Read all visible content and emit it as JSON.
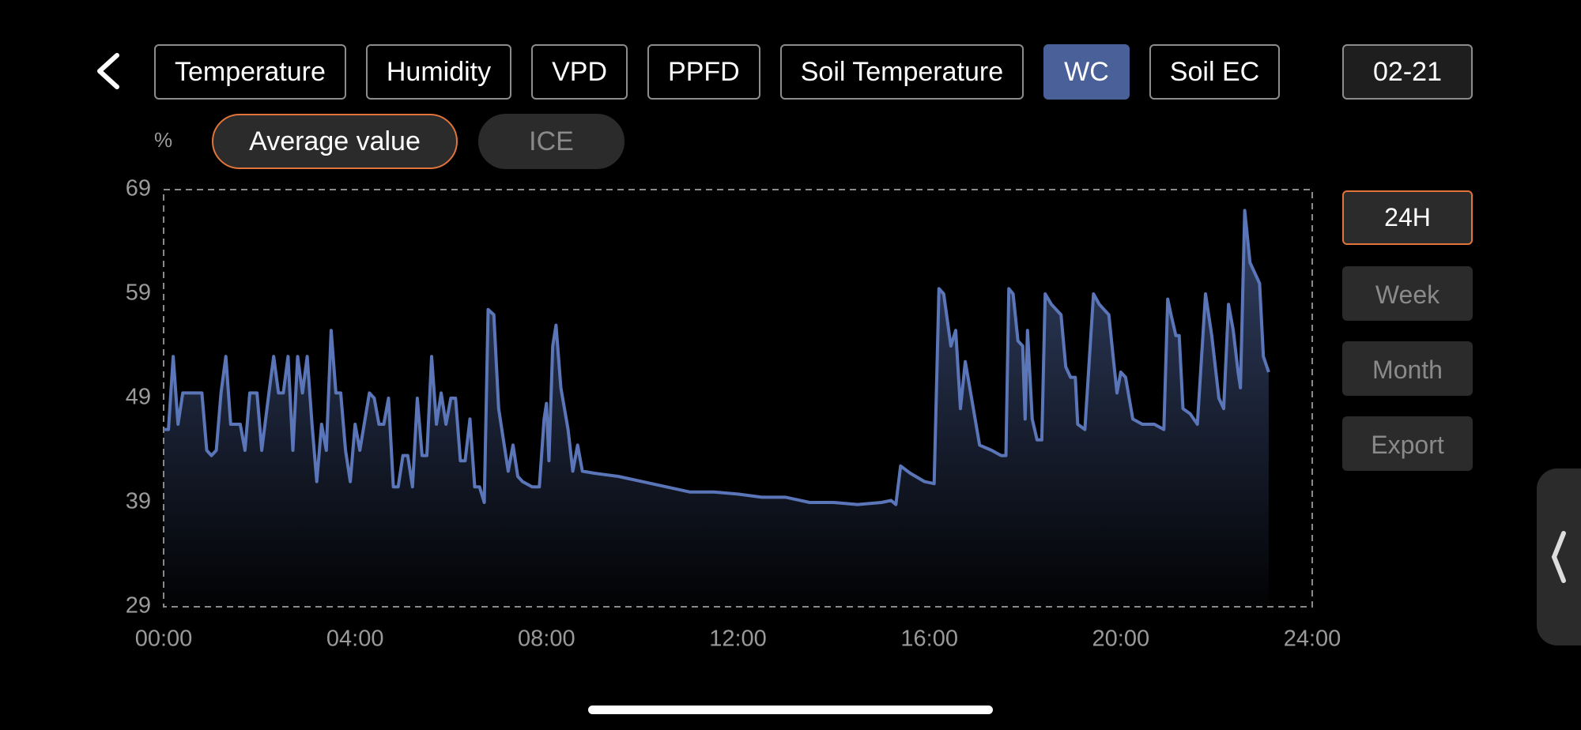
{
  "tabs": [
    "Temperature",
    "Humidity",
    "VPD",
    "PPFD",
    "Soil Temperature",
    "WC",
    "Soil EC"
  ],
  "selected_tab": 5,
  "date": "02-21",
  "filters": [
    "Average value",
    "ICE"
  ],
  "selected_filter": 0,
  "ranges": [
    "24H",
    "Week",
    "Month"
  ],
  "selected_range": 0,
  "export": "Export",
  "chart_data": {
    "type": "area",
    "y_label": "%",
    "xlim": [
      0,
      24
    ],
    "xticks": [
      {
        "value": 0,
        "label": "00:00"
      },
      {
        "value": 4,
        "label": "04:00"
      },
      {
        "value": 8,
        "label": "08:00"
      },
      {
        "value": 12,
        "label": "12:00"
      },
      {
        "value": 16,
        "label": "16:00"
      },
      {
        "value": 20,
        "label": "20:00"
      },
      {
        "value": 24,
        "label": "24:00"
      }
    ],
    "ylim": [
      29,
      69
    ],
    "yticks": [
      29,
      39,
      49,
      59,
      69
    ],
    "grid": false,
    "series": [
      {
        "name": "Average value",
        "color": "#5b76b8",
        "x": [
          0.0,
          0.1,
          0.2,
          0.3,
          0.4,
          0.6,
          0.8,
          0.9,
          1.0,
          1.1,
          1.2,
          1.3,
          1.4,
          1.6,
          1.7,
          1.8,
          1.95,
          2.05,
          2.2,
          2.3,
          2.4,
          2.5,
          2.6,
          2.7,
          2.8,
          2.9,
          3.0,
          3.1,
          3.2,
          3.3,
          3.4,
          3.5,
          3.6,
          3.7,
          3.8,
          3.9,
          4.0,
          4.1,
          4.3,
          4.4,
          4.5,
          4.6,
          4.7,
          4.8,
          4.9,
          5.0,
          5.1,
          5.2,
          5.3,
          5.4,
          5.5,
          5.6,
          5.7,
          5.8,
          5.9,
          6.0,
          6.1,
          6.2,
          6.3,
          6.4,
          6.5,
          6.6,
          6.7,
          6.78,
          6.9,
          7.0,
          7.2,
          7.3,
          7.4,
          7.5,
          7.7,
          7.85,
          7.95,
          8.0,
          8.05,
          8.13,
          8.2,
          8.3,
          8.45,
          8.55,
          8.65,
          8.75,
          9.0,
          9.5,
          10.0,
          10.5,
          11.0,
          11.5,
          12.0,
          12.5,
          13.0,
          13.5,
          14.0,
          14.5,
          15.0,
          15.2,
          15.3,
          15.4,
          15.6,
          15.9,
          16.1,
          16.2,
          16.3,
          16.45,
          16.55,
          16.65,
          16.75,
          16.9,
          17.05,
          17.3,
          17.5,
          17.6,
          17.66,
          17.75,
          17.85,
          17.95,
          18.0,
          18.05,
          18.15,
          18.25,
          18.35,
          18.42,
          18.55,
          18.65,
          18.75,
          18.85,
          18.95,
          19.05,
          19.1,
          19.25,
          19.43,
          19.55,
          19.65,
          19.75,
          19.85,
          19.92,
          20.0,
          20.1,
          20.25,
          20.45,
          20.7,
          20.9,
          20.98,
          21.05,
          21.15,
          21.22,
          21.3,
          21.45,
          21.6,
          21.77,
          21.9,
          22.05,
          22.15,
          22.25,
          22.35,
          22.45,
          22.5,
          22.59,
          22.7,
          22.8,
          22.9,
          22.98,
          23.09
        ],
        "values": [
          46,
          46,
          53,
          46.5,
          49.5,
          49.5,
          49.5,
          44,
          43.5,
          44,
          49.5,
          53,
          46.5,
          46.5,
          44,
          49.5,
          49.5,
          44,
          49.5,
          53,
          49.5,
          49.5,
          53,
          44,
          53,
          49.5,
          53,
          46.5,
          41,
          46.5,
          44,
          55.5,
          49.5,
          49.5,
          44,
          41,
          46.5,
          44,
          49.5,
          49,
          46.5,
          46.5,
          49,
          40.5,
          40.5,
          43.5,
          43.5,
          40.5,
          49,
          43.5,
          43.5,
          53,
          46.5,
          49.5,
          46.5,
          49,
          49,
          43,
          43,
          47,
          40.5,
          40.5,
          39,
          57.5,
          57,
          48,
          42,
          44.5,
          41.5,
          41,
          40.5,
          40.5,
          47,
          48.5,
          43,
          54,
          56,
          50,
          46,
          42,
          44.5,
          42,
          41.8,
          41.5,
          41,
          40.5,
          40,
          40,
          39.8,
          39.5,
          39.5,
          39,
          39,
          38.8,
          39,
          39.2,
          38.8,
          42.5,
          41.8,
          41,
          40.8,
          59.5,
          59,
          54,
          55.5,
          48,
          52.5,
          48.5,
          44.5,
          44,
          43.5,
          43.5,
          59.5,
          59,
          54.5,
          54,
          47,
          55.5,
          47,
          45,
          45,
          59,
          58,
          57.5,
          57,
          52,
          51,
          51,
          46.5,
          46,
          59,
          58,
          57.5,
          57,
          52.5,
          49.5,
          51.5,
          51,
          47,
          46.5,
          46.5,
          46,
          58.5,
          57,
          55,
          55,
          48,
          47.5,
          46.5,
          59,
          55,
          49,
          48,
          58,
          55.5,
          51.5,
          50,
          67,
          62,
          61,
          60,
          53,
          51.5
        ]
      }
    ]
  }
}
